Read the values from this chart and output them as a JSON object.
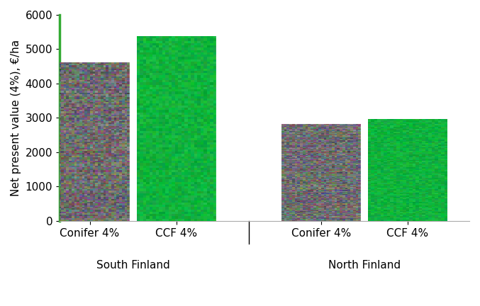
{
  "groups": [
    "South Finland",
    "North Finland"
  ],
  "bar_labels": [
    "Conifer 4%",
    "CCF 4%"
  ],
  "values": {
    "South Finland": [
      4620,
      5380
    ],
    "North Finland": [
      2810,
      2960
    ]
  },
  "conifer_color": "#888888",
  "ccf_color": "#00bb33",
  "ylabel": "Net present value (4%), €/ha",
  "ylim": [
    0,
    6000
  ],
  "yticks": [
    0,
    1000,
    2000,
    3000,
    4000,
    5000,
    6000
  ],
  "bar_width": 0.75,
  "left_line_color": "#33aa33",
  "background_color": "#ffffff",
  "tick_fontsize": 11,
  "label_fontsize": 11,
  "ylabel_fontsize": 11,
  "group_centers": [
    1.0,
    3.2
  ],
  "xlim": [
    0.3,
    4.2
  ]
}
